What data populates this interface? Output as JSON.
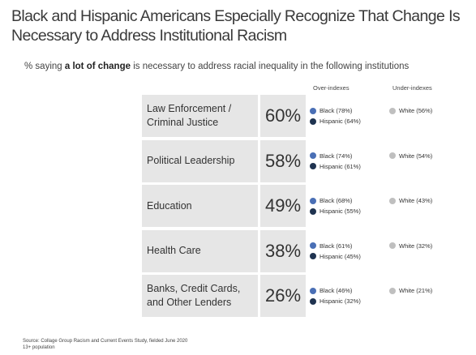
{
  "title": "Black and Hispanic Americans Especially Recognize That Change Is Necessary to Address Institutional Racism",
  "subtitle": {
    "prefix": "% saying ",
    "bold": "a lot of change",
    "suffix": " is necessary to address racial inequality in the following institutions"
  },
  "column_headers": {
    "over": "Over-indexes",
    "under": "Under-indexes"
  },
  "colors": {
    "black": "#4a6fb5",
    "hispanic": "#1f3350",
    "white": "#bfbfbf",
    "box": "#e6e6e6"
  },
  "source": {
    "line1": "Source: Collage Group Racism and Current Events Study, fielded June 2020",
    "line2": "13+ population"
  },
  "chart_data": {
    "type": "table",
    "rows": [
      {
        "label": "Law Enforcement / Criminal Justice",
        "value_label": "60%",
        "value": 60,
        "over": [
          {
            "label": "Black (78%)",
            "group": "black"
          },
          {
            "label": "Hispanic (64%)",
            "group": "hispanic"
          }
        ],
        "under": [
          {
            "label": "White (56%)",
            "group": "white"
          }
        ]
      },
      {
        "label": "Political Leadership",
        "value_label": "58%",
        "value": 58,
        "over": [
          {
            "label": "Black (74%)",
            "group": "black"
          },
          {
            "label": "Hispanic (61%)",
            "group": "hispanic"
          }
        ],
        "under": [
          {
            "label": "White (54%)",
            "group": "white"
          }
        ]
      },
      {
        "label": "Education",
        "value_label": "49%",
        "value": 49,
        "over": [
          {
            "label": "Black (68%)",
            "group": "black"
          },
          {
            "label": "Hispanic (55%)",
            "group": "hispanic"
          }
        ],
        "under": [
          {
            "label": "White (43%)",
            "group": "white"
          }
        ]
      },
      {
        "label": "Health Care",
        "value_label": "38%",
        "value": 38,
        "over": [
          {
            "label": "Black (61%)",
            "group": "black"
          },
          {
            "label": "Hispanic (45%)",
            "group": "hispanic"
          }
        ],
        "under": [
          {
            "label": "White (32%)",
            "group": "white"
          }
        ]
      },
      {
        "label": "Banks, Credit Cards, and Other Lenders",
        "value_label": "26%",
        "value": 26,
        "over": [
          {
            "label": "Black (46%)",
            "group": "black"
          },
          {
            "label": "Hispanic (32%)",
            "group": "hispanic"
          }
        ],
        "under": [
          {
            "label": "White (21%)",
            "group": "white"
          }
        ]
      }
    ]
  }
}
